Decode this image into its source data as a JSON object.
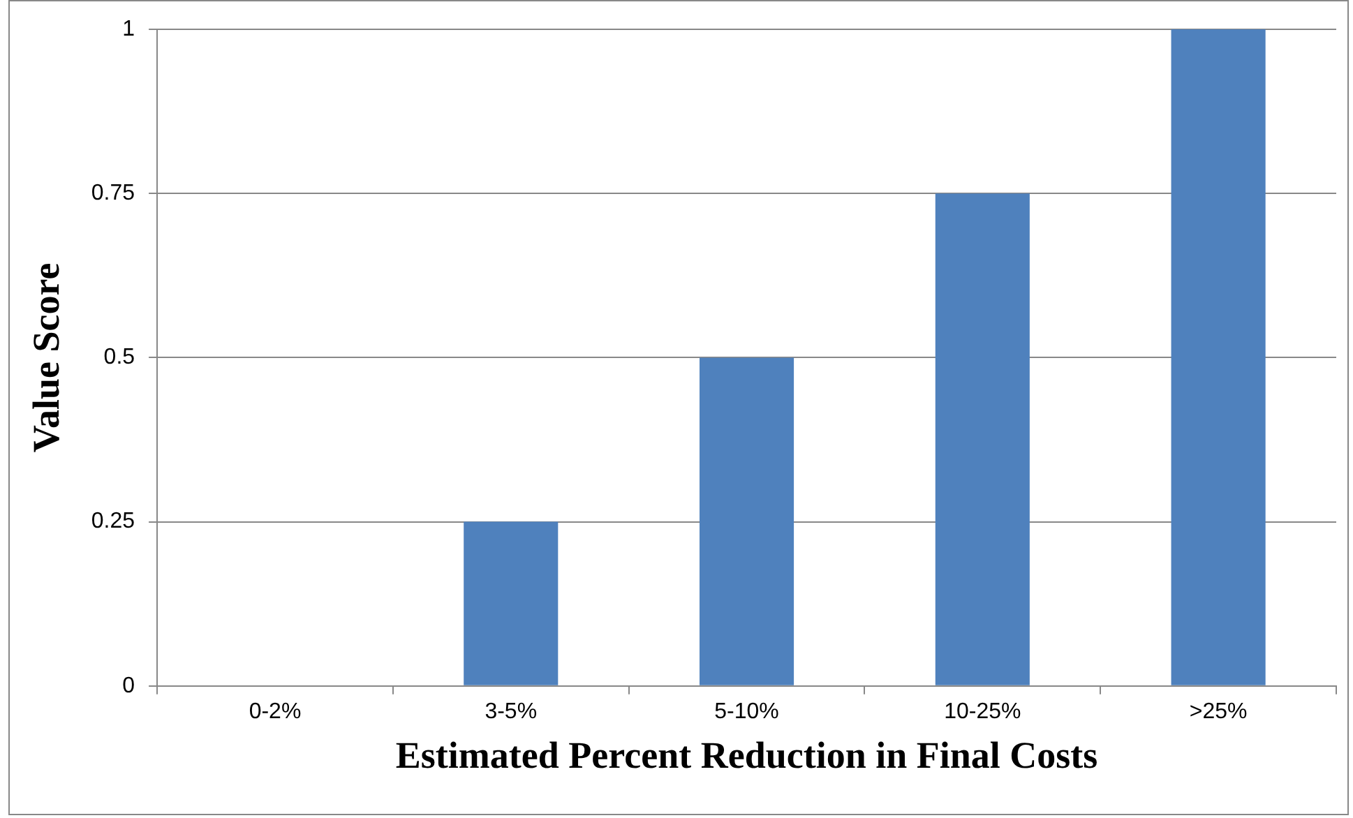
{
  "chart_data": {
    "type": "bar",
    "xlabel": "Estimated Percent Reduction in Final Costs",
    "ylabel": "Value Score",
    "categories": [
      "0-2%",
      "3-5%",
      "5-10%",
      "10-25%",
      ">25%"
    ],
    "values": [
      0,
      0.25,
      0.5,
      0.75,
      1
    ],
    "color": "#4f81bd",
    "ylim": [
      0,
      1
    ],
    "yticks": [
      0,
      0.25,
      0.5,
      0.75,
      1
    ],
    "grid": "y",
    "legend": false
  }
}
